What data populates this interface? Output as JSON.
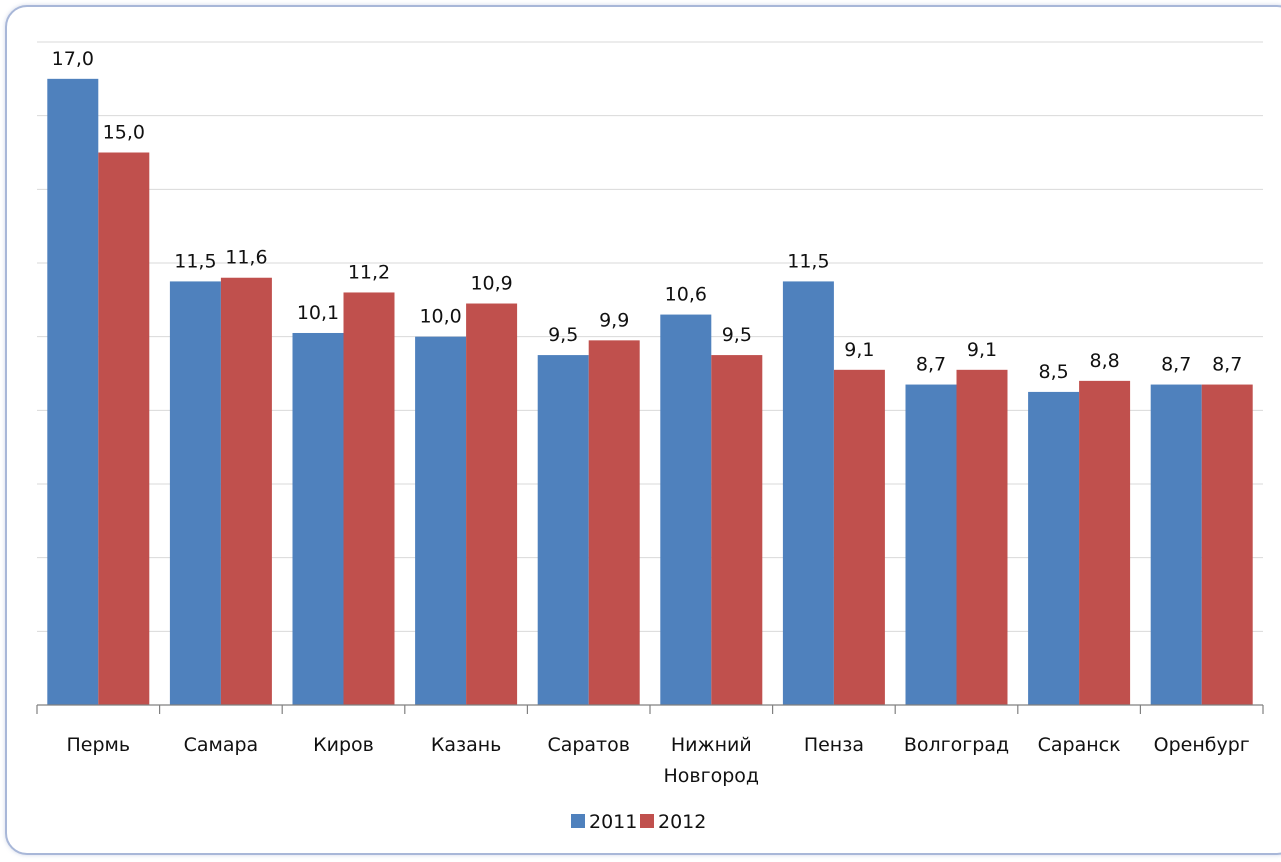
{
  "chart_data": {
    "type": "bar",
    "categories": [
      "Пермь",
      "Самара",
      "Киров",
      "Казань",
      "Саратов",
      "Нижний Новгород",
      "Пенза",
      "Волгоград",
      "Саранск",
      "Оренбург"
    ],
    "category_lines": [
      [
        "Пермь"
      ],
      [
        "Самара"
      ],
      [
        "Киров"
      ],
      [
        "Казань"
      ],
      [
        "Саратов"
      ],
      [
        "Нижний",
        "Новгород"
      ],
      [
        "Пенза"
      ],
      [
        "Волгоград"
      ],
      [
        "Саранск"
      ],
      [
        "Оренбург"
      ]
    ],
    "series": [
      {
        "name": "2011",
        "color": "#4f81bd",
        "values": [
          17.0,
          11.5,
          10.1,
          10.0,
          9.5,
          10.6,
          11.5,
          8.7,
          8.5,
          8.7
        ],
        "labels": [
          "17,0",
          "11,5",
          "10,1",
          "10,0",
          "9,5",
          "10,6",
          "11,5",
          "8,7",
          "8,5",
          "8,7"
        ]
      },
      {
        "name": "2012",
        "color": "#c0504d",
        "values": [
          15.0,
          11.6,
          11.2,
          10.9,
          9.9,
          9.5,
          9.1,
          9.1,
          8.8,
          8.7
        ],
        "labels": [
          "15,0",
          "11,6",
          "11,2",
          "10,9",
          "9,9",
          "9,5",
          "9,1",
          "9,1",
          "8,8",
          "8,7"
        ]
      }
    ],
    "ylim": [
      0,
      18
    ],
    "grid": true,
    "legend_position": "bottom",
    "title": "",
    "xlabel": "",
    "ylabel": ""
  }
}
